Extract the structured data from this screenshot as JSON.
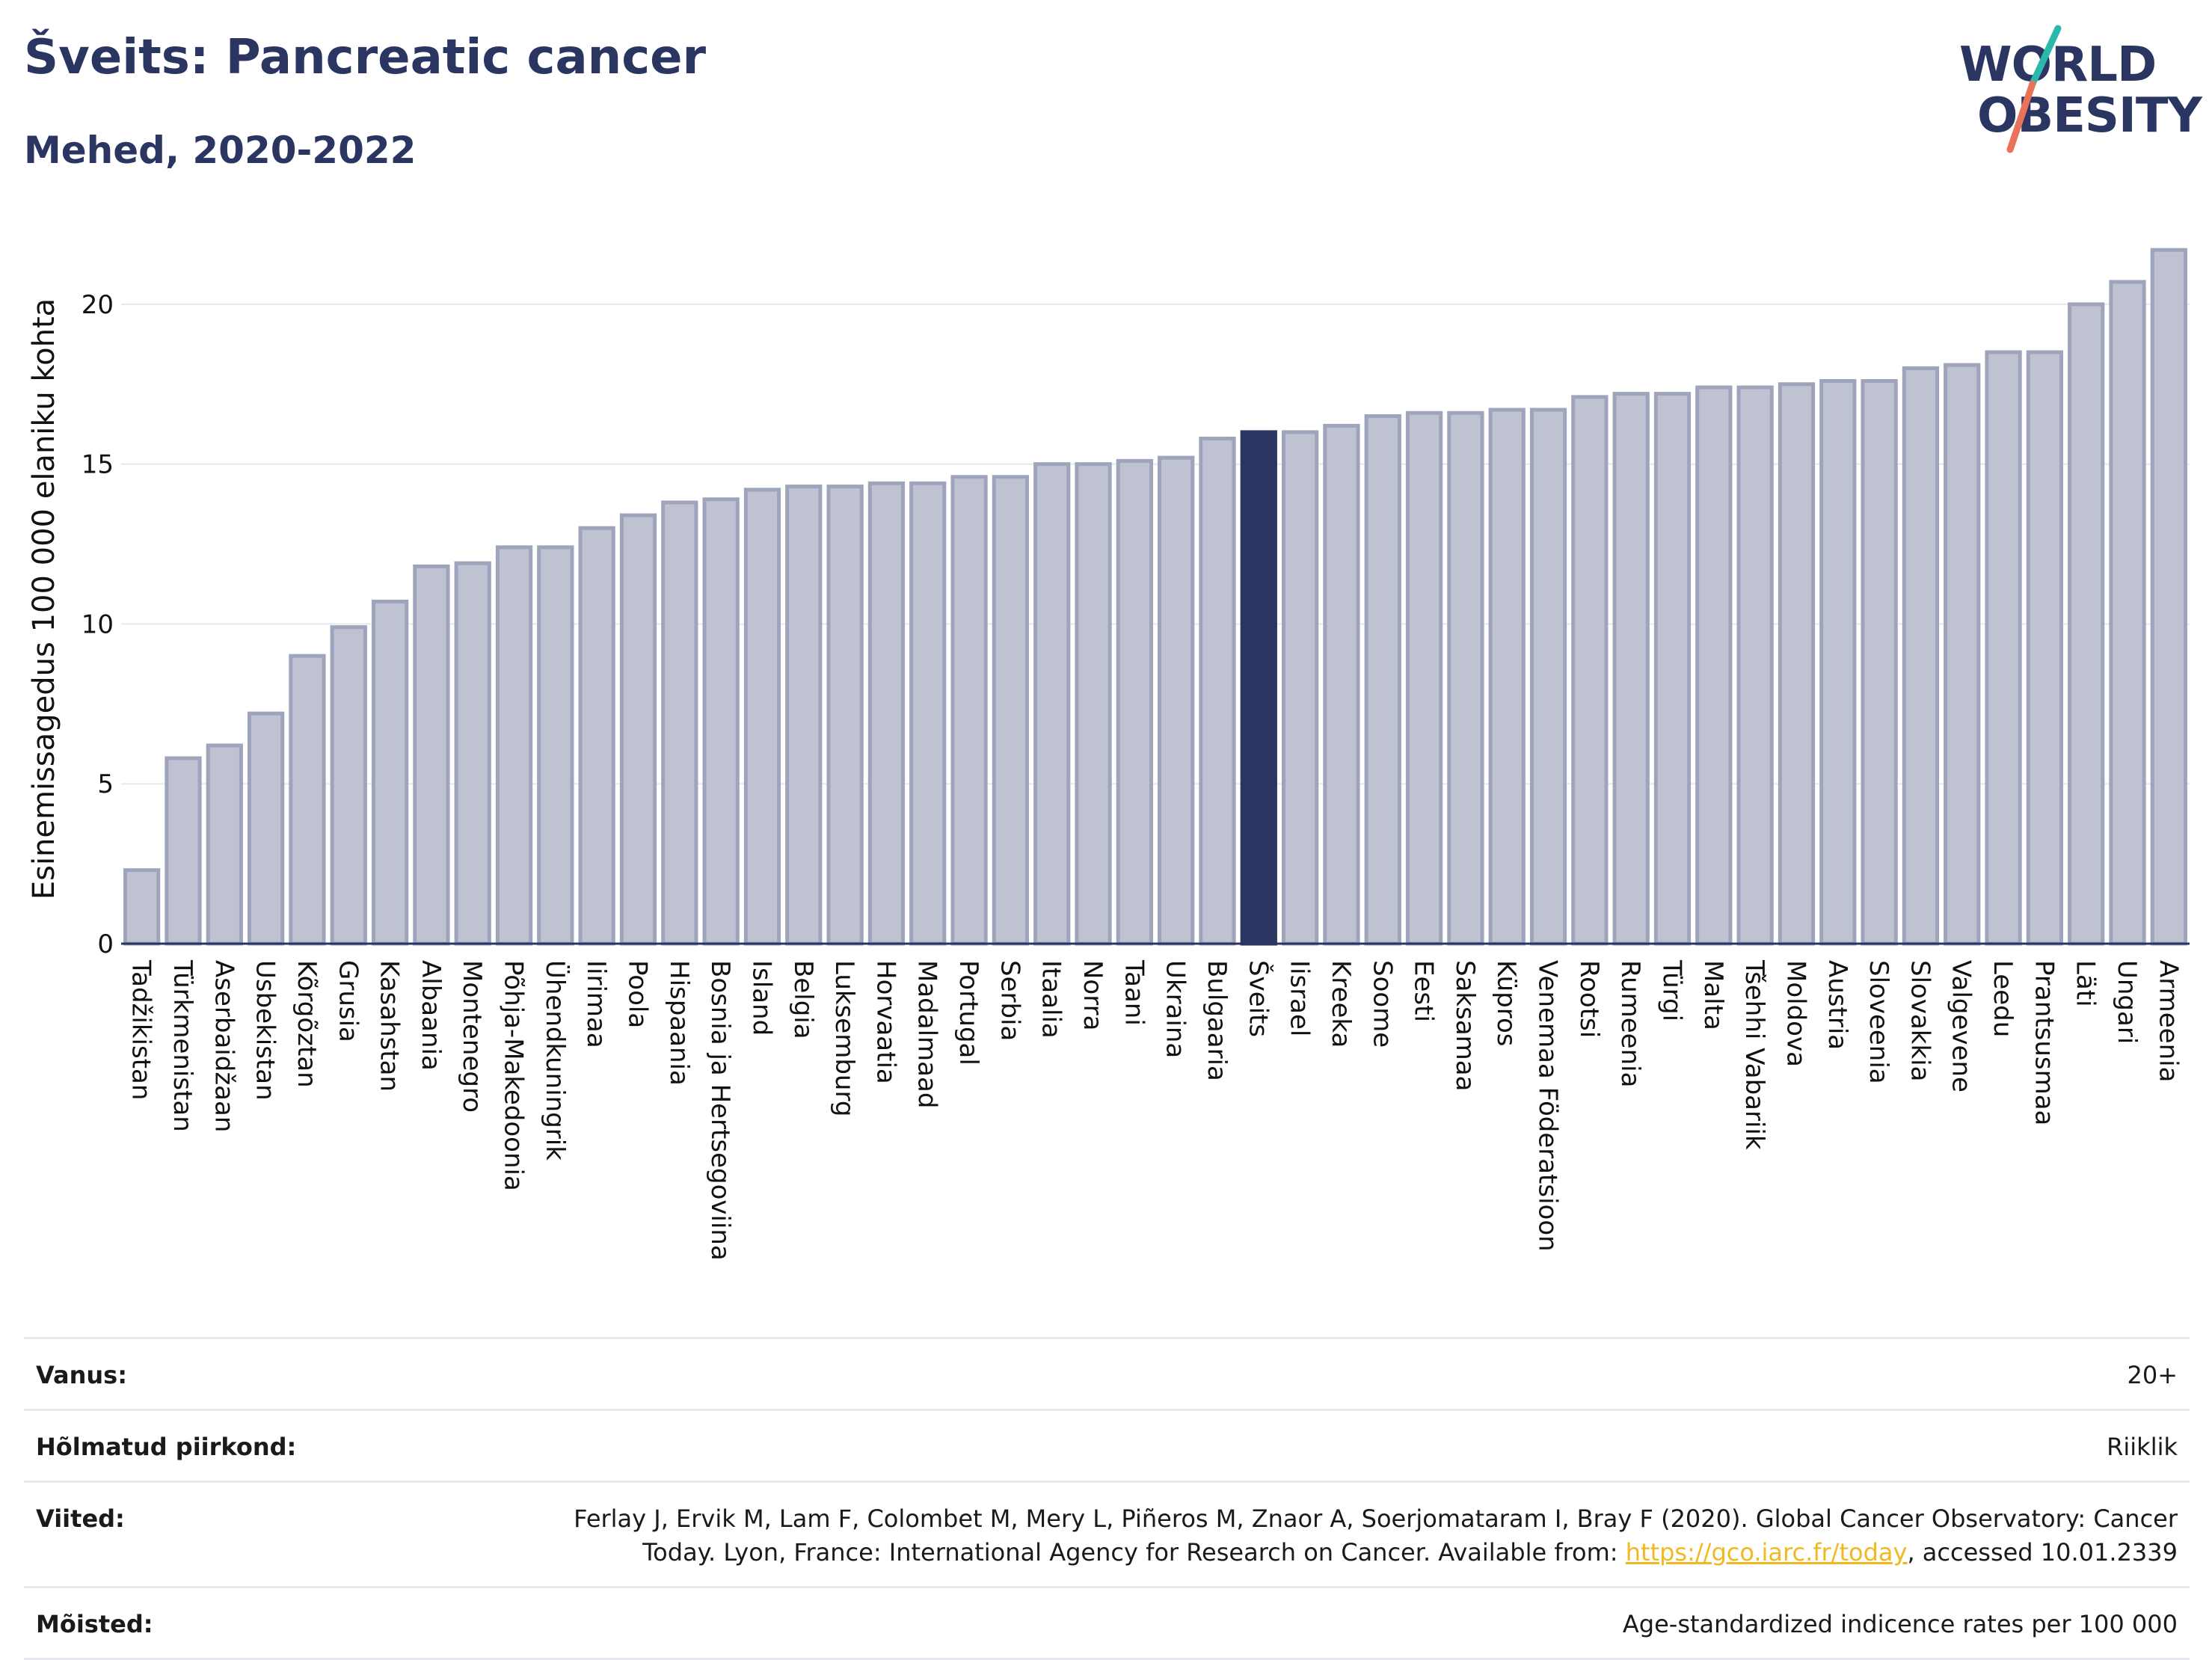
{
  "header": {
    "title": "Šveits: Pancreatic cancer",
    "subtitle": "Mehed, 2020-2022"
  },
  "logo": {
    "line1": "WORLD",
    "line2": "OBESITY",
    "accent_color": "#2bb9ae",
    "accent_color2": "#e8735a"
  },
  "chart_data": {
    "type": "bar",
    "ylabel": "Esinemissagedus 100 000 elaniku kohta",
    "ylim": [
      0,
      22.5
    ],
    "yticks": [
      0,
      5,
      10,
      15,
      20
    ],
    "grid": true,
    "highlight": "Šveits",
    "bar_color": "#bfc3d1",
    "bar_edge_color": "#9ea4bb",
    "highlight_color": "#2a3561",
    "categories": [
      "Tadžikistan",
      "Türkmenistan",
      "Aserbaidžaan",
      "Usbekistan",
      "Kõrgõztan",
      "Grusia",
      "Kasahstan",
      "Albaania",
      "Montenegro",
      "Põhja-Makedoonia",
      "Ühendkuningrik",
      "Iirimaa",
      "Poola",
      "Hispaania",
      "Bosnia ja Hertsegoviina",
      "Island",
      "Belgia",
      "Luksemburg",
      "Horvaatia",
      "Madalmaad",
      "Portugal",
      "Serbia",
      "Itaalia",
      "Norra",
      "Taani",
      "Ukraina",
      "Bulgaaria",
      "Šveits",
      "Iisrael",
      "Kreeka",
      "Soome",
      "Eesti",
      "Saksamaa",
      "Küpros",
      "Venemaa Föderatsioon",
      "Rootsi",
      "Rumeenia",
      "Türgi",
      "Malta",
      "Tšehhi Vabariik",
      "Moldova",
      "Austria",
      "Sloveenia",
      "Slovakkia",
      "Valgevene",
      "Leedu",
      "Prantsusmaa",
      "Läti",
      "Ungari",
      "Armeenia"
    ],
    "values": [
      2.3,
      5.8,
      6.2,
      7.2,
      9.0,
      9.9,
      10.7,
      11.8,
      11.9,
      12.4,
      12.4,
      13.0,
      13.4,
      13.8,
      13.9,
      14.2,
      14.3,
      14.3,
      14.4,
      14.4,
      14.6,
      14.6,
      15.0,
      15.0,
      15.1,
      15.2,
      15.8,
      16.0,
      16.0,
      16.2,
      16.5,
      16.6,
      16.6,
      16.7,
      16.7,
      17.1,
      17.2,
      17.2,
      17.4,
      17.4,
      17.5,
      17.6,
      17.6,
      18.0,
      18.1,
      18.5,
      18.5,
      20.0,
      20.7,
      21.7
    ]
  },
  "footer": {
    "rows": [
      {
        "label": "Vanus:",
        "value": "20+"
      },
      {
        "label": "Hõlmatud piirkond:",
        "value": "Riiklik"
      },
      {
        "label": "Viited:",
        "value_pre": "Ferlay J, Ervik M, Lam F, Colombet M, Mery L, Piñeros M, Znaor A, Soerjomataram I, Bray F (2020). Global Cancer Observatory: Cancer Today. Lyon, France: International Agency for Research on Cancer. Available from: ",
        "link": "https://gco.iarc.fr/today",
        "value_post": ", accessed 10.01.2339"
      },
      {
        "label": "Mõisted:",
        "value": "Age-standardized indicence rates per 100 000"
      }
    ]
  }
}
